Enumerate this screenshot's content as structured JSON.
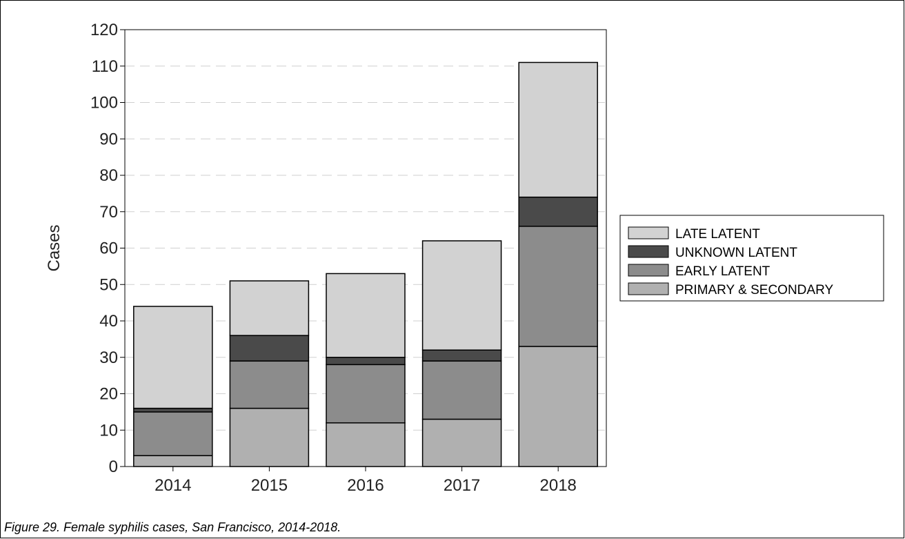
{
  "chart_data": {
    "type": "bar",
    "stacked": true,
    "title": "",
    "xlabel": "",
    "ylabel": "Cases",
    "ylim": [
      0,
      120
    ],
    "yticks": [
      0,
      10,
      20,
      30,
      40,
      50,
      60,
      70,
      80,
      90,
      100,
      110,
      120
    ],
    "grid": "horizontal-dashed",
    "legend_position": "right",
    "categories": [
      "2014",
      "2015",
      "2016",
      "2017",
      "2018"
    ],
    "series": [
      {
        "name": "PRIMARY & SECONDARY",
        "color": "#b0b0b0",
        "values": [
          3,
          16,
          12,
          13,
          33
        ]
      },
      {
        "name": "EARLY LATENT",
        "color": "#8c8c8c",
        "values": [
          12,
          13,
          16,
          16,
          33
        ]
      },
      {
        "name": "UNKNOWN LATENT",
        "color": "#4a4a4a",
        "values": [
          1,
          7,
          2,
          3,
          8
        ]
      },
      {
        "name": "LATE LATENT",
        "color": "#d2d2d2",
        "values": [
          28,
          15,
          23,
          30,
          37
        ]
      }
    ],
    "legend_order": [
      "LATE LATENT",
      "UNKNOWN LATENT",
      "EARLY LATENT",
      "PRIMARY & SECONDARY"
    ]
  },
  "caption": "Figure 29.  Female syphilis cases, San Francisco, 2014-2018."
}
